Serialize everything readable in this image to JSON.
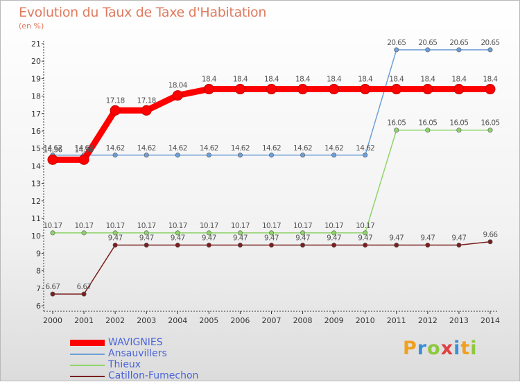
{
  "header": {
    "title": "Evolution du Taux de Taxe d'Habitation",
    "subtitle": "(en %)"
  },
  "logo": {
    "text": "Proxiti",
    "letters": [
      "P",
      "r",
      "o",
      "x",
      "i",
      "t",
      "i"
    ]
  },
  "chart_data": {
    "type": "line",
    "title": "Evolution du Taux de Taxe d'Habitation",
    "ylabel": "(en %)",
    "xlabel": "",
    "ylim": [
      6,
      21
    ],
    "y_ticks": [
      6,
      7,
      8,
      9,
      10,
      11,
      12,
      13,
      14,
      15,
      16,
      17,
      18,
      19,
      20,
      21
    ],
    "grid": false,
    "legend_position": "bottom-left",
    "x": [
      "2000",
      "2001",
      "2002",
      "2003",
      "2004",
      "2005",
      "2006",
      "2007",
      "2008",
      "2009",
      "2010",
      "2011",
      "2012",
      "2013",
      "2014"
    ],
    "series": [
      {
        "name": "WAVIGNIES",
        "color": "#ff0000",
        "values": [
          14.36,
          14.36,
          17.18,
          17.18,
          18.04,
          18.4,
          18.4,
          18.4,
          18.4,
          18.4,
          18.4,
          18.4,
          18.4,
          18.4,
          18.4
        ],
        "labels": [
          "14.36",
          "14.36",
          "17.18",
          "17.18",
          "18.04",
          "18.4",
          "18.4",
          "18.4",
          "18.4",
          "18.4",
          "18.4",
          "18.4",
          "18.4",
          "18.4",
          "18.4"
        ]
      },
      {
        "name": "Ansauvillers",
        "color": "#6e9fd6",
        "values": [
          14.62,
          14.62,
          14.62,
          14.62,
          14.62,
          14.62,
          14.62,
          14.62,
          14.62,
          14.62,
          14.62,
          20.65,
          20.65,
          20.65,
          20.65
        ],
        "labels": [
          "14.62",
          "14.62",
          "14.62",
          "14.62",
          "14.62",
          "14.62",
          "14.62",
          "14.62",
          "14.62",
          "14.62",
          "14.62",
          "20.65",
          "20.65",
          "20.65",
          "20.65"
        ]
      },
      {
        "name": "Thieux",
        "color": "#8fd46a",
        "values": [
          10.17,
          10.17,
          10.17,
          10.17,
          10.17,
          10.17,
          10.17,
          10.17,
          10.17,
          10.17,
          10.17,
          16.05,
          16.05,
          16.05,
          16.05
        ],
        "labels": [
          "10.17",
          "10.17",
          "10.17",
          "10.17",
          "10.17",
          "10.17",
          "10.17",
          "10.17",
          "10.17",
          "10.17",
          "10.17",
          "16.05",
          "16.05",
          "16.05",
          "16.05"
        ]
      },
      {
        "name": "Catillon-Fumechon",
        "color": "#7a1e1e",
        "values": [
          6.67,
          6.67,
          9.47,
          9.47,
          9.47,
          9.47,
          9.47,
          9.47,
          9.47,
          9.47,
          9.47,
          9.47,
          9.47,
          9.47,
          9.66
        ],
        "labels": [
          "6.67",
          "6.67",
          "9.47",
          "9.47",
          "9.47",
          "9.47",
          "9.47",
          "9.47",
          "9.47",
          "9.47",
          "9.47",
          "9.47",
          "9.47",
          "9.47",
          "9.66"
        ]
      }
    ]
  }
}
